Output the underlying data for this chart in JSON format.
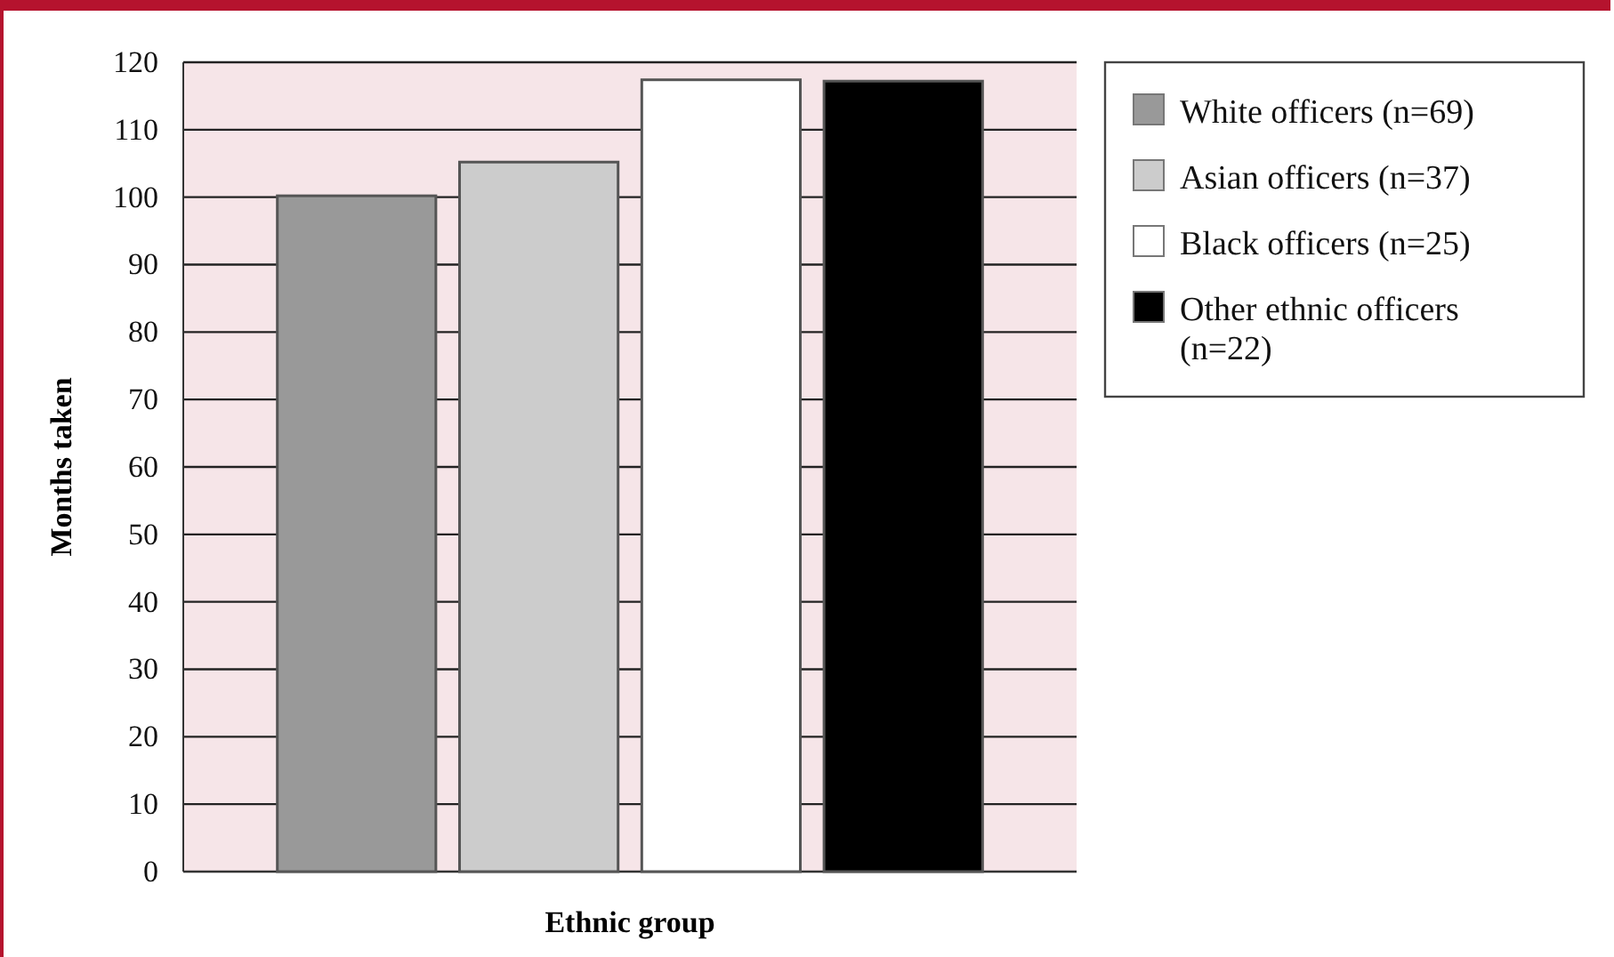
{
  "chart_data": {
    "type": "bar",
    "xlabel": "Ethnic group",
    "ylabel": "Months taken",
    "categories": [
      null
    ],
    "series": [
      {
        "name": "White officers (n=69)",
        "color": "#999999",
        "values": [
          100.2
        ]
      },
      {
        "name": "Asian officers (n=37)",
        "color": "#cccccc",
        "values": [
          105.2
        ]
      },
      {
        "name": "Black officers (n=25)",
        "color": "#ffffff",
        "values": [
          117.4
        ]
      },
      {
        "name": "Other ethnic officers\n(n=22)",
        "color": "#000000",
        "values": [
          117.2
        ]
      }
    ],
    "ylim": [
      0,
      120
    ],
    "yticks": [
      0,
      10,
      20,
      30,
      40,
      50,
      60,
      70,
      80,
      90,
      100,
      110,
      120
    ],
    "grid": "y",
    "legend": "right"
  }
}
